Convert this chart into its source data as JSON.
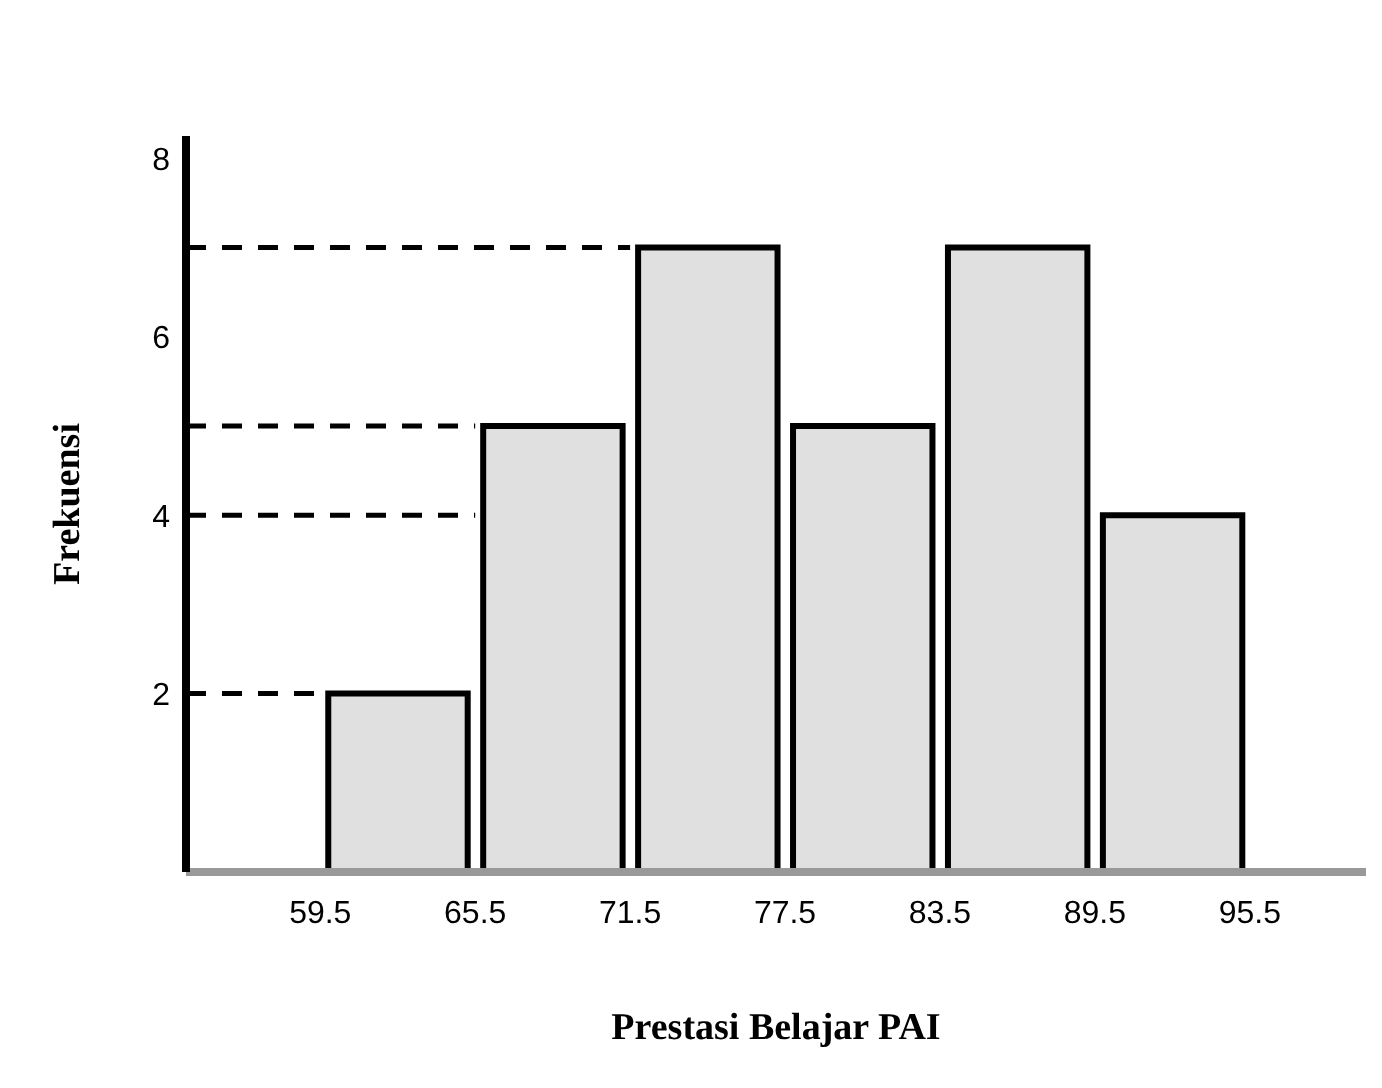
{
  "chart_data": {
    "type": "histogram",
    "xlabel": "Prestasi Belajar PAI",
    "ylabel": "Frekuensi",
    "bins": [
      59.5,
      65.5,
      71.5,
      77.5,
      83.5,
      89.5,
      95.5
    ],
    "values": [
      2,
      5,
      7,
      5,
      7,
      4
    ],
    "color": "#e0e0e0",
    "xlim": [
      54.3,
      100
    ],
    "ylim": [
      0,
      8.25
    ],
    "xticks": [
      59.5,
      65.5,
      71.5,
      77.5,
      83.5,
      89.5,
      95.5
    ],
    "yticks": [
      2,
      4,
      6,
      8
    ],
    "ref_lines": [
      {
        "axis": "y",
        "value": 2,
        "line_style": "dashed"
      },
      {
        "axis": "y",
        "value": 4,
        "line_style": "dashed"
      },
      {
        "axis": "y",
        "value": 5,
        "line_style": "dashed"
      },
      {
        "axis": "y",
        "value": 7,
        "line_style": "dashed"
      }
    ],
    "grid": false
  }
}
